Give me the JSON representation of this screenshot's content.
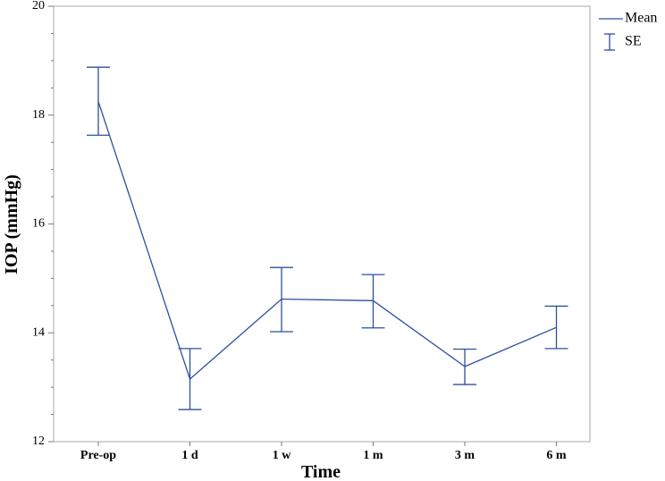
{
  "chart_data": {
    "type": "line",
    "xlabel": "Time",
    "ylabel": "IOP (mmHg)",
    "categories": [
      "Pre-op",
      "1 d",
      "1 w",
      "1 m",
      "3 m",
      "6 m"
    ],
    "ylim": [
      12,
      20
    ],
    "yticks": [
      12,
      14,
      16,
      18,
      20
    ],
    "grid": false,
    "legend": {
      "placement": "top-right",
      "entries": [
        "Mean",
        "SE"
      ]
    },
    "series": [
      {
        "name": "Mean",
        "values": [
          18.25,
          13.15,
          14.62,
          14.59,
          13.38,
          14.1
        ],
        "error_low": [
          17.63,
          12.59,
          14.02,
          14.09,
          13.05,
          13.71
        ],
        "error_high": [
          18.88,
          13.71,
          15.2,
          15.07,
          13.7,
          14.49
        ]
      }
    ],
    "color": "#2e4f9e"
  }
}
